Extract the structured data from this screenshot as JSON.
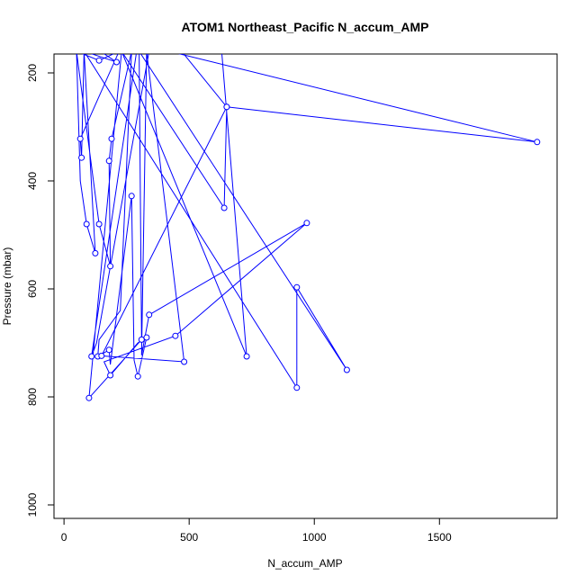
{
  "chart_data": {
    "type": "line",
    "title": "ATOM1 Northeast_Pacific N_accum_AMP",
    "xlabel": "N_accum_AMP",
    "ylabel": "Pressure (mbar)",
    "xlim": [
      -40,
      1970
    ],
    "ylim": [
      1025,
      165
    ],
    "y_reversed": true,
    "x_ticks": [
      0,
      500,
      1000,
      1500
    ],
    "y_ticks": [
      200,
      400,
      600,
      800,
      1000
    ],
    "grid": false,
    "legend": "none",
    "line_color": "#0000ff",
    "marker": "open-circle",
    "points_x": [
      50,
      140,
      220,
      65,
      70,
      80,
      125,
      90,
      65,
      50,
      140,
      185,
      180,
      190,
      270,
      225,
      140,
      135,
      180,
      185,
      270,
      280,
      295,
      330,
      295,
      185,
      160,
      445,
      970,
      340,
      310,
      330,
      480,
      150,
      650,
      640,
      230,
      340,
      130,
      110,
      290,
      420,
      1890,
      650,
      470,
      630,
      730,
      230,
      100,
      310,
      300,
      1130,
      930,
      930,
      80,
      210,
      145,
      125,
      140,
      170,
      600,
      960,
      310
    ],
    "points_y": [
      160,
      177,
      160,
      322,
      357,
      160,
      534,
      480,
      400,
      160,
      480,
      558,
      363,
      322,
      160,
      640,
      694,
      725,
      713,
      740,
      428,
      732,
      762,
      690,
      700,
      760,
      735,
      687,
      478,
      648,
      723,
      160,
      735,
      724,
      263,
      450,
      160,
      160,
      700,
      725,
      160,
      160,
      328,
      263,
      160,
      160,
      725,
      160,
      802,
      694,
      160,
      750,
      597,
      783,
      160,
      180,
      160,
      160,
      160,
      160,
      160,
      160,
      160
    ],
    "points_shown": [
      false,
      true,
      false,
      true,
      true,
      false,
      true,
      true,
      false,
      false,
      true,
      true,
      true,
      true,
      false,
      false,
      false,
      true,
      true,
      false,
      true,
      false,
      true,
      true,
      false,
      true,
      false,
      true,
      true,
      true,
      false,
      false,
      true,
      true,
      true,
      true,
      false,
      false,
      false,
      true,
      false,
      false,
      true,
      true,
      false,
      false,
      true,
      false,
      true,
      true,
      false,
      true,
      true,
      true,
      false,
      true,
      false,
      false,
      false,
      false,
      false,
      false,
      false
    ]
  }
}
